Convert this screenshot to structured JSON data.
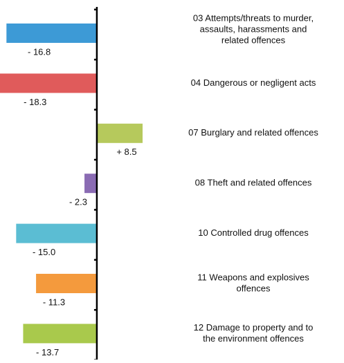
{
  "chart_data": {
    "type": "bar",
    "orientation": "horizontal",
    "categories": [
      [
        "03 Attempts/threats to murder,",
        "assaults, harassments and",
        "related offences"
      ],
      [
        "04 Dangerous or negligent acts"
      ],
      [
        "07 Burglary and related offences"
      ],
      [
        "08 Theft and related offences"
      ],
      [
        "10 Controlled drug offences"
      ],
      [
        "11 Weapons and explosives",
        "offences"
      ],
      [
        "12 Damage to property and to",
        "the environment offences"
      ]
    ],
    "values": [
      -16.8,
      -18.3,
      8.5,
      -2.3,
      -15.0,
      -11.3,
      -13.7
    ],
    "value_labels": [
      "- 16.8",
      "- 18.3",
      "+ 8.5",
      "- 2.3",
      "- 15.0",
      "- 11.3",
      "- 13.7"
    ],
    "colors": [
      "#3d9ad6",
      "#e05b5b",
      "#b6c95c",
      "#8a6bb3",
      "#5bbdd3",
      "#f49a3d",
      "#a9c94c"
    ],
    "xlim": [
      -18,
      8.5
    ]
  }
}
